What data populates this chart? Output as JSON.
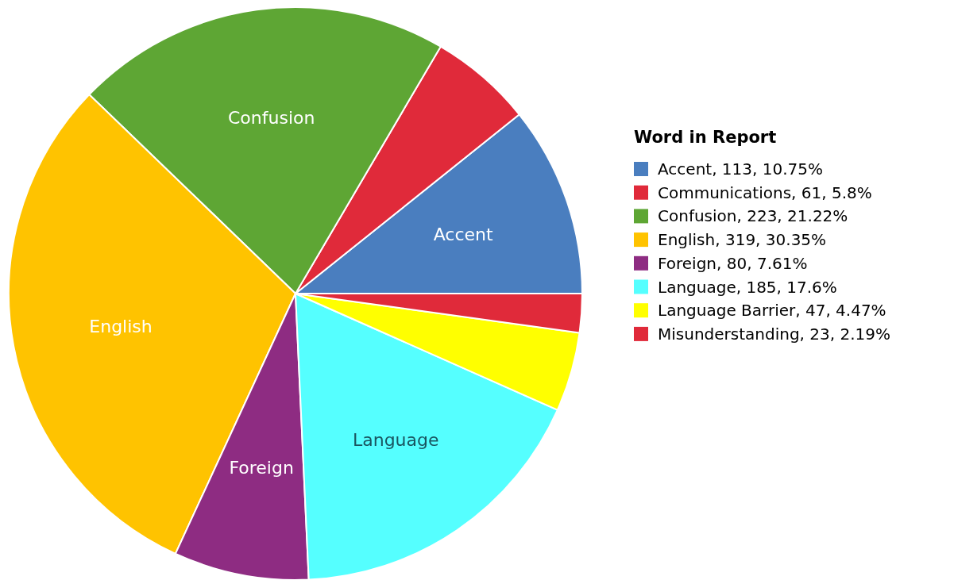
{
  "chart_data": {
    "type": "pie",
    "legend_title": "Word in Report",
    "legend": "right",
    "categories": [
      "Accent",
      "Communications",
      "Confusion",
      "English",
      "Foreign",
      "Language",
      "Language Barrier",
      "Misunderstanding"
    ],
    "values": [
      10.75,
      5.8,
      21.22,
      30.35,
      7.61,
      17.6,
      4.47,
      2.19
    ],
    "value_labels": [
      ", 113, 10.75%",
      ", 61, 5.8%",
      ", 223, 21.22%",
      ", 319, 30.35%",
      ", 80, 7.61%",
      ", 185, 17.6%",
      ", 47, 4.47%",
      ", 23, 2.19%"
    ],
    "colors": [
      "#4a7ebf",
      "#e02a3a",
      "#5ea634",
      "#ffc300",
      "#8e2c82",
      "#55ffff",
      "#ffff00",
      "#e02a3a"
    ]
  }
}
